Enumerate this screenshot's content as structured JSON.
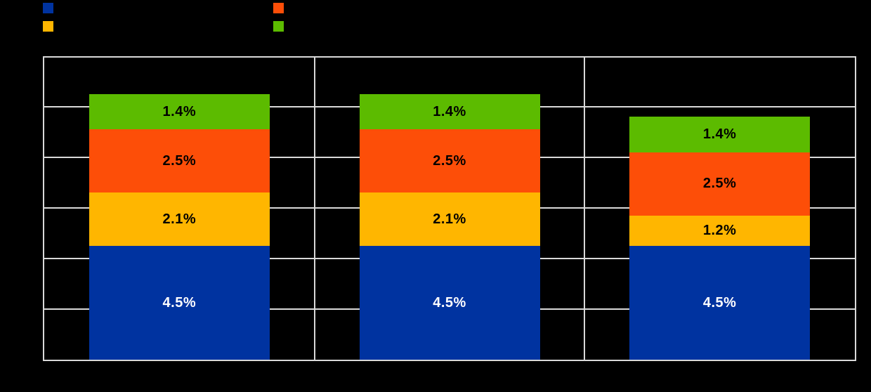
{
  "page": {
    "background": "#000000",
    "grid_color": "#D9D9D9"
  },
  "legend": {
    "position": "top",
    "items": [
      {
        "id": "blue",
        "color": "#0033A0",
        "column": 1,
        "row": 1
      },
      {
        "id": "orange",
        "color": "#FD4E08",
        "column": 2,
        "row": 1
      },
      {
        "id": "yellow",
        "color": "#FFB600",
        "column": 1,
        "row": 2
      },
      {
        "id": "green",
        "color": "#5CBB00",
        "column": 2,
        "row": 2
      }
    ]
  },
  "chart_data": {
    "type": "bar",
    "stacked": true,
    "orientation": "vertical",
    "categories": [
      "",
      "",
      ""
    ],
    "series": [
      {
        "name": "blue-bottom-segment",
        "color": "#0033A0",
        "label_color": "#FFFFFF",
        "values": [
          4.5,
          4.5,
          4.5
        ],
        "labels": [
          "4.5%",
          "4.5%",
          "4.5%"
        ]
      },
      {
        "name": "yellow-segment",
        "color": "#FFB600",
        "label_color": "#000000",
        "values": [
          2.1,
          2.1,
          1.2
        ],
        "labels": [
          "2.1%",
          "2.1%",
          "1.2%"
        ]
      },
      {
        "name": "orange-segment",
        "color": "#FD4E08",
        "label_color": "#000000",
        "values": [
          2.5,
          2.5,
          2.5
        ],
        "labels": [
          "2.5%",
          "2.5%",
          "2.5%"
        ]
      },
      {
        "name": "green-top-segment",
        "color": "#5CBB00",
        "label_color": "#000000",
        "values": [
          1.4,
          1.4,
          1.4
        ],
        "labels": [
          "1.4%",
          "1.4%",
          "1.4%"
        ]
      }
    ],
    "totals": [
      10.5,
      10.5,
      9.6
    ],
    "ylim": [
      0,
      12
    ],
    "grid_step": 2,
    "grid_on": true,
    "grid_color": "#D9D9D9",
    "plot_background": "#000000",
    "panel_separators": 2,
    "axis_tick_text_visible": false,
    "legend_position": "top"
  }
}
